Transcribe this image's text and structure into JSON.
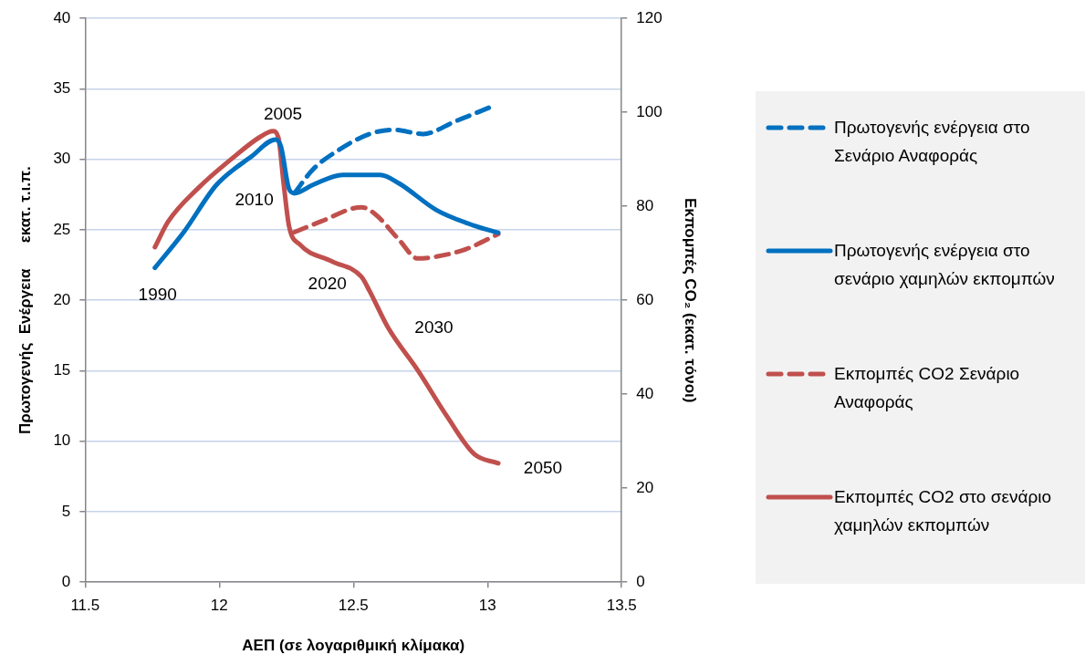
{
  "chart_data": {
    "type": "line",
    "xlabel": "ΑΕΠ (σε λογαριθμική κλίμακα)",
    "ylabel": "Πρωτογενής  Ενέργεια      εκατ. τ.ι.π.",
    "y2label": "Εκπομπές CO₂ (εκατ. τόνοι)",
    "xlim": [
      11.5,
      13.5
    ],
    "xticks": [
      11.5,
      12,
      12.5,
      13,
      13.5
    ],
    "ylim": [
      0,
      40
    ],
    "yticks": [
      0,
      5,
      10,
      15,
      20,
      25,
      30,
      35,
      40
    ],
    "y2lim": [
      0,
      120
    ],
    "y2ticks": [
      0,
      20,
      40,
      60,
      80,
      100,
      120
    ],
    "grid": "y",
    "legend": "right",
    "marker": "none",
    "series": [
      {
        "name": "Πρωτογενής ενέργεια στο Σενάριο Αναφοράς",
        "color": "#0070c0",
        "line_style": "dashed",
        "x": [
          12.28,
          12.35,
          12.44,
          12.56,
          12.65,
          12.76,
          12.88,
          13.01
        ],
        "values": [
          27.6,
          29.3,
          30.6,
          31.8,
          32.1,
          31.8,
          32.7,
          33.7
        ]
      },
      {
        "name": "Πρωτογενής ενέργεια στο σενάριο χαμηλών εκπομπών",
        "color": "#0070c0",
        "line_style": "solid",
        "x": [
          11.76,
          11.87,
          11.99,
          12.12,
          12.21,
          12.23,
          12.26,
          12.28,
          12.35,
          12.46,
          12.6,
          12.67,
          12.81,
          12.95,
          13.04
        ],
        "values": [
          22.3,
          24.9,
          28.2,
          30.2,
          31.4,
          30.9,
          27.9,
          27.6,
          28.2,
          28.9,
          28.9,
          28.3,
          26.4,
          25.3,
          24.8
        ]
      },
      {
        "name": "Εκπομπές CO2 Σενάριο Αναφοράς",
        "color": "#c0504d",
        "line_style": "dashed",
        "axis": "y2",
        "x": [
          12.28,
          12.38,
          12.53,
          12.58,
          12.67,
          12.74,
          12.81,
          12.92,
          13.04
        ],
        "values": [
          74.5,
          76.8,
          79.8,
          78.4,
          72.9,
          68.9,
          69.3,
          70.9,
          74.1
        ]
      },
      {
        "name": "Εκπομπές CO2 στο σενάριο χαμηλών εκπομπών",
        "color": "#c0504d",
        "line_style": "solid",
        "axis": "y2",
        "x": [
          11.76,
          11.81,
          11.92,
          12.05,
          12.15,
          12.2,
          12.22,
          12.24,
          12.26,
          12.3,
          12.42,
          12.53,
          12.56,
          12.63,
          12.74,
          12.85,
          12.95,
          13.04
        ],
        "values": [
          71.3,
          76.8,
          83.8,
          90.3,
          94.7,
          96,
          94.7,
          84.8,
          75.8,
          71.9,
          68.3,
          65,
          62,
          54.1,
          45.1,
          35.2,
          27.3,
          25.3
        ]
      }
    ],
    "annotations": [
      {
        "text": "1990",
        "x": 11.76,
        "y": 22.3
      },
      {
        "text": "2005",
        "x": 12.21,
        "y": 31.4
      },
      {
        "text": "2010",
        "x": 12.28,
        "y": 27.6
      },
      {
        "text": "2020",
        "x": 12.42,
        "y": 22.8
      },
      {
        "text": "2030",
        "x": 12.63,
        "y": 18
      },
      {
        "text": "2050",
        "x": 13.04,
        "y": 8.4
      }
    ]
  }
}
